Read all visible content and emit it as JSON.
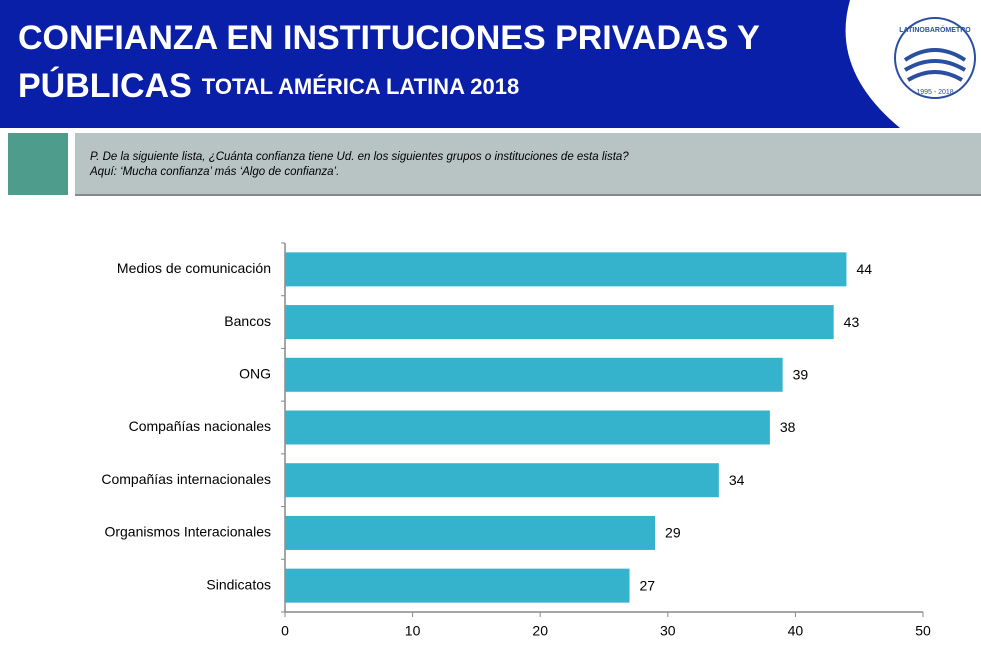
{
  "header": {
    "title_line1": "CONFIANZA EN INSTITUCIONES PRIVADAS Y",
    "title_line2": "PÚBLICAS",
    "title_suffix": "TOTAL AMÉRICA LATINA 2018",
    "logo_name": "LATINOBARÓMETRO",
    "logo_years": "1995 - 2018"
  },
  "question": {
    "line1": "P. De la siguiente lista, ¿Cuánta confianza tiene Ud. en los siguientes grupos o instituciones de esta lista?",
    "line2": "Aquí: ‘Mucha confianza’ más ‘Algo de confianza’."
  },
  "chart_data": {
    "type": "bar",
    "orientation": "horizontal",
    "categories": [
      "Medios de comunicación",
      "Bancos",
      "ONG",
      "Compañías nacionales",
      "Compañías internacionales",
      "Organismos Interacionales",
      "Sindicatos"
    ],
    "values": [
      44,
      43,
      39,
      38,
      34,
      29,
      27
    ],
    "color": "#35b3cc",
    "xlim": [
      0,
      50
    ],
    "xticks": [
      0,
      10,
      20,
      30,
      40,
      50
    ],
    "grid": false
  }
}
